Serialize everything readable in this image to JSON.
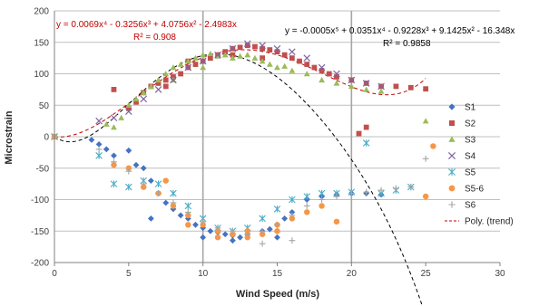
{
  "chart_data": {
    "type": "scatter",
    "xlabel": "Wind Speed (m/s)",
    "ylabel": "Microstrain",
    "xlim": [
      0,
      30
    ],
    "ylim": [
      -200,
      200
    ],
    "x_ticks": [
      "0",
      "5",
      "10",
      "15",
      "20",
      "25",
      "30"
    ],
    "y_ticks": [
      "200",
      "150",
      "100",
      "50",
      "0",
      "-50",
      "-100",
      "-150",
      "-200"
    ],
    "grid": "horizontal",
    "legend_position": "right",
    "annotations": {
      "red_equation": "y = 0.0069x⁴ - 0.3256x³ + 4.0756x² - 2.4983x",
      "red_r2": "R² = 0.908",
      "black_equation": "y = -0.0005x⁵ + 0.0351x⁴ - 0.9228x³ + 9.1425x² - 16.348x",
      "black_r2": "R² = 0.9858"
    },
    "series": [
      {
        "name": "S1",
        "color": "#4472C4",
        "marker": "diamond",
        "points": [
          [
            0,
            0
          ],
          [
            2.5,
            -5
          ],
          [
            3,
            -12
          ],
          [
            3.5,
            -20
          ],
          [
            4,
            -30
          ],
          [
            5,
            -22
          ],
          [
            5.5,
            -45
          ],
          [
            6,
            -50
          ],
          [
            6.5,
            -70
          ],
          [
            7,
            -90
          ],
          [
            7.5,
            -105
          ],
          [
            8,
            -115
          ],
          [
            8.5,
            -125
          ],
          [
            9,
            -130
          ],
          [
            9.5,
            -140
          ],
          [
            10,
            -145
          ],
          [
            10.5,
            -150
          ],
          [
            11,
            -152
          ],
          [
            11.5,
            -155
          ],
          [
            12,
            -157
          ],
          [
            12.5,
            -160
          ],
          [
            13,
            -155
          ],
          [
            14,
            -150
          ],
          [
            14.5,
            -147
          ],
          [
            15,
            -140
          ],
          [
            15.5,
            -130
          ],
          [
            16,
            -120
          ],
          [
            17,
            -100
          ],
          [
            18,
            -95
          ],
          [
            19,
            -92
          ],
          [
            20,
            -90
          ],
          [
            21,
            -90
          ],
          [
            22,
            -92
          ],
          [
            6.5,
            -130
          ],
          [
            10,
            -160
          ],
          [
            12,
            -165
          ],
          [
            15,
            -160
          ]
        ]
      },
      {
        "name": "S2",
        "color": "#C0504D",
        "marker": "square",
        "points": [
          [
            0,
            0
          ],
          [
            4,
            75
          ],
          [
            5,
            45
          ],
          [
            5.5,
            55
          ],
          [
            6,
            70
          ],
          [
            6.5,
            80
          ],
          [
            7,
            85
          ],
          [
            7.5,
            90
          ],
          [
            8,
            95
          ],
          [
            8.5,
            100
          ],
          [
            9,
            110
          ],
          [
            9.5,
            115
          ],
          [
            10,
            120
          ],
          [
            10.5,
            125
          ],
          [
            11,
            130
          ],
          [
            11.5,
            135
          ],
          [
            12,
            140
          ],
          [
            12.5,
            142
          ],
          [
            13,
            145
          ],
          [
            13.5,
            143
          ],
          [
            14,
            140
          ],
          [
            14.5,
            138
          ],
          [
            15,
            135
          ],
          [
            15.5,
            130
          ],
          [
            16,
            125
          ],
          [
            16.5,
            120
          ],
          [
            17,
            115
          ],
          [
            17.5,
            110
          ],
          [
            18,
            105
          ],
          [
            18.5,
            100
          ],
          [
            19,
            95
          ],
          [
            20,
            90
          ],
          [
            21,
            85
          ],
          [
            22,
            80
          ],
          [
            23,
            80
          ],
          [
            24,
            78
          ],
          [
            25,
            76
          ],
          [
            21,
            15
          ],
          [
            20.5,
            5
          ],
          [
            7.5,
            80
          ],
          [
            9,
            120
          ],
          [
            12,
            130
          ],
          [
            14,
            125
          ]
        ]
      },
      {
        "name": "S3",
        "color": "#9BBB59",
        "marker": "triangle",
        "points": [
          [
            0,
            0
          ],
          [
            3.5,
            20
          ],
          [
            4,
            15
          ],
          [
            4.5,
            30
          ],
          [
            5,
            50
          ],
          [
            5.5,
            60
          ],
          [
            6,
            70
          ],
          [
            6.5,
            80
          ],
          [
            7,
            90
          ],
          [
            7.5,
            100
          ],
          [
            8,
            110
          ],
          [
            8.5,
            115
          ],
          [
            9,
            120
          ],
          [
            9.5,
            125
          ],
          [
            10,
            130
          ],
          [
            10.5,
            132
          ],
          [
            11,
            128
          ],
          [
            11.5,
            130
          ],
          [
            12,
            125
          ],
          [
            12.5,
            128
          ],
          [
            13,
            130
          ],
          [
            13.5,
            125
          ],
          [
            14,
            120
          ],
          [
            14.5,
            115
          ],
          [
            15,
            110
          ],
          [
            15.5,
            112
          ],
          [
            16,
            105
          ],
          [
            17,
            100
          ],
          [
            18,
            90
          ],
          [
            19,
            85
          ],
          [
            20,
            80
          ],
          [
            21,
            75
          ],
          [
            22,
            72
          ],
          [
            25,
            25
          ],
          [
            8,
            90
          ],
          [
            10,
            110
          ]
        ]
      },
      {
        "name": "S4",
        "color": "#8064A2",
        "marker": "x",
        "points": [
          [
            0,
            0
          ],
          [
            3,
            25
          ],
          [
            4,
            30
          ],
          [
            5,
            40
          ],
          [
            6,
            60
          ],
          [
            7,
            75
          ],
          [
            8,
            90
          ],
          [
            9,
            110
          ],
          [
            10,
            120
          ],
          [
            11,
            130
          ],
          [
            12,
            140
          ],
          [
            13,
            148
          ],
          [
            14,
            145
          ],
          [
            15,
            140
          ],
          [
            16,
            135
          ],
          [
            17,
            125
          ],
          [
            18,
            110
          ],
          [
            19,
            100
          ],
          [
            20,
            90
          ],
          [
            21,
            85
          ],
          [
            22,
            80
          ]
        ]
      },
      {
        "name": "S5",
        "color": "#4BACC6",
        "marker": "star",
        "points": [
          [
            0,
            0
          ],
          [
            3,
            -30
          ],
          [
            4,
            -75
          ],
          [
            5,
            -80
          ],
          [
            6,
            -70
          ],
          [
            7,
            -75
          ],
          [
            8,
            -90
          ],
          [
            9,
            -110
          ],
          [
            10,
            -130
          ],
          [
            11,
            -145
          ],
          [
            12,
            -150
          ],
          [
            13,
            -145
          ],
          [
            14,
            -130
          ],
          [
            15,
            -115
          ],
          [
            16,
            -100
          ],
          [
            17,
            -95
          ],
          [
            18,
            -90
          ],
          [
            19,
            -90
          ],
          [
            20,
            -88
          ],
          [
            21,
            -10
          ],
          [
            22,
            -90
          ],
          [
            23,
            -85
          ],
          [
            24,
            -80
          ]
        ]
      },
      {
        "name": "S5-6",
        "color": "#F79646",
        "marker": "circle",
        "points": [
          [
            0,
            0
          ],
          [
            4,
            -45
          ],
          [
            5,
            -50
          ],
          [
            6,
            -80
          ],
          [
            7,
            -90
          ],
          [
            8,
            -110
          ],
          [
            9,
            -125
          ],
          [
            10,
            -140
          ],
          [
            11,
            -150
          ],
          [
            12,
            -155
          ],
          [
            13,
            -160
          ],
          [
            14,
            -155
          ],
          [
            15,
            -150
          ],
          [
            16,
            -130
          ],
          [
            17,
            -120
          ],
          [
            18,
            -110
          ],
          [
            19,
            -135
          ],
          [
            25,
            -95
          ],
          [
            25.5,
            -15
          ],
          [
            7.5,
            -70
          ],
          [
            9,
            -140
          ],
          [
            11,
            -160
          ],
          [
            13,
            -150
          ],
          [
            15,
            -140
          ]
        ]
      },
      {
        "name": "S6",
        "color": "#A6A6A6",
        "marker": "plus",
        "points": [
          [
            0,
            0
          ],
          [
            3,
            -20
          ],
          [
            4,
            -40
          ],
          [
            5,
            -55
          ],
          [
            6,
            -75
          ],
          [
            7,
            -90
          ],
          [
            8,
            -105
          ],
          [
            9,
            -120
          ],
          [
            10,
            -135
          ],
          [
            11,
            -145
          ],
          [
            12,
            -150
          ],
          [
            13,
            -155
          ],
          [
            14,
            -150
          ],
          [
            15,
            -140
          ],
          [
            16,
            -125
          ],
          [
            17,
            -110
          ],
          [
            18,
            -100
          ],
          [
            19,
            -95
          ],
          [
            20,
            -90
          ],
          [
            21,
            -88
          ],
          [
            22,
            -85
          ],
          [
            23,
            -82
          ],
          [
            24,
            -80
          ],
          [
            25,
            -35
          ],
          [
            14,
            -170
          ],
          [
            16,
            -165
          ]
        ]
      }
    ],
    "trendlines": [
      {
        "name": "Poly. (trend)",
        "color": "#C00000",
        "style": "dashed",
        "coeffs_ascending": [
          0,
          -2.4983,
          4.0756,
          -0.3256,
          0.0069
        ],
        "x_range": [
          0,
          25
        ]
      },
      {
        "color": "#000000",
        "style": "dashed",
        "coeffs_ascending": [
          0,
          -16.348,
          9.1425,
          -0.9228,
          0.0351,
          -0.0005
        ],
        "x_range": [
          0,
          25
        ]
      }
    ]
  }
}
